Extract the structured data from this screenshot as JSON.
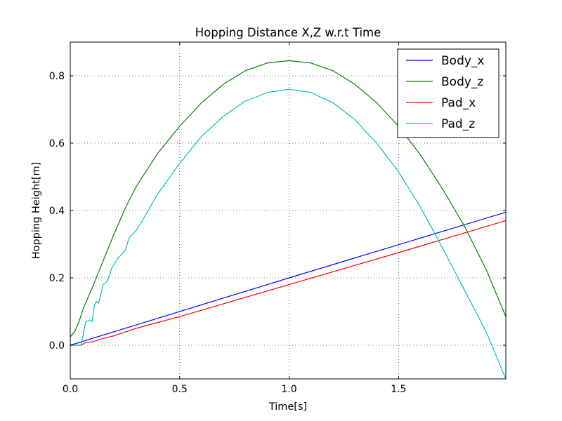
{
  "chart_data": {
    "type": "line",
    "title": "Hopping Distance X,Z w.r.t Time",
    "xlabel": "Time[s]",
    "ylabel": "Hopping Height[m]",
    "xlim": [
      0.0,
      1.99
    ],
    "ylim": [
      -0.1,
      0.9
    ],
    "xticks": [
      0.0,
      0.5,
      1.0,
      1.5
    ],
    "xtick_labels": [
      "0.0",
      "0.5",
      "1.0",
      "1.5"
    ],
    "yticks": [
      0.0,
      0.2,
      0.4,
      0.6,
      0.8
    ],
    "ytick_labels": [
      "0.0",
      "0.2",
      "0.4",
      "0.6",
      "0.8"
    ],
    "grid": true,
    "legend_position": "top-right",
    "series": [
      {
        "name": "Body_x",
        "color": "#0000ff",
        "x": [
          0.0,
          1.0,
          1.99
        ],
        "y": [
          0.0,
          0.2,
          0.395
        ]
      },
      {
        "name": "Body_z",
        "color": "#008000",
        "x": [
          0.0,
          0.02,
          0.04,
          0.06,
          0.08,
          0.1,
          0.15,
          0.2,
          0.25,
          0.3,
          0.4,
          0.5,
          0.6,
          0.7,
          0.8,
          0.9,
          1.0,
          1.1,
          1.2,
          1.3,
          1.4,
          1.5,
          1.6,
          1.7,
          1.8,
          1.9,
          1.99
        ],
        "y": [
          0.025,
          0.04,
          0.07,
          0.11,
          0.14,
          0.17,
          0.25,
          0.33,
          0.405,
          0.47,
          0.57,
          0.65,
          0.72,
          0.775,
          0.815,
          0.838,
          0.845,
          0.838,
          0.815,
          0.775,
          0.72,
          0.65,
          0.565,
          0.465,
          0.355,
          0.225,
          0.085
        ]
      },
      {
        "name": "Pad_x",
        "color": "#ff0000",
        "x": [
          0.0,
          0.05,
          0.07,
          0.1,
          0.15,
          0.2,
          0.3,
          0.5,
          1.0,
          1.5,
          1.99
        ],
        "y": [
          0.0,
          0.0,
          0.008,
          0.01,
          0.02,
          0.028,
          0.05,
          0.085,
          0.18,
          0.275,
          0.37
        ]
      },
      {
        "name": "Pad_z",
        "color": "#00bfbf",
        "x": [
          0.0,
          0.05,
          0.07,
          0.09,
          0.1,
          0.11,
          0.12,
          0.13,
          0.15,
          0.17,
          0.19,
          0.2,
          0.22,
          0.25,
          0.27,
          0.3,
          0.33,
          0.4,
          0.5,
          0.6,
          0.7,
          0.8,
          0.9,
          1.0,
          1.1,
          1.2,
          1.3,
          1.4,
          1.5,
          1.6,
          1.7,
          1.8,
          1.9,
          1.99
        ],
        "y": [
          0.0,
          0.0,
          0.07,
          0.075,
          0.07,
          0.12,
          0.13,
          0.125,
          0.18,
          0.19,
          0.23,
          0.24,
          0.26,
          0.28,
          0.32,
          0.34,
          0.37,
          0.45,
          0.54,
          0.62,
          0.68,
          0.725,
          0.75,
          0.76,
          0.75,
          0.72,
          0.67,
          0.6,
          0.515,
          0.41,
          0.29,
          0.165,
          0.04,
          -0.1
        ]
      }
    ]
  }
}
